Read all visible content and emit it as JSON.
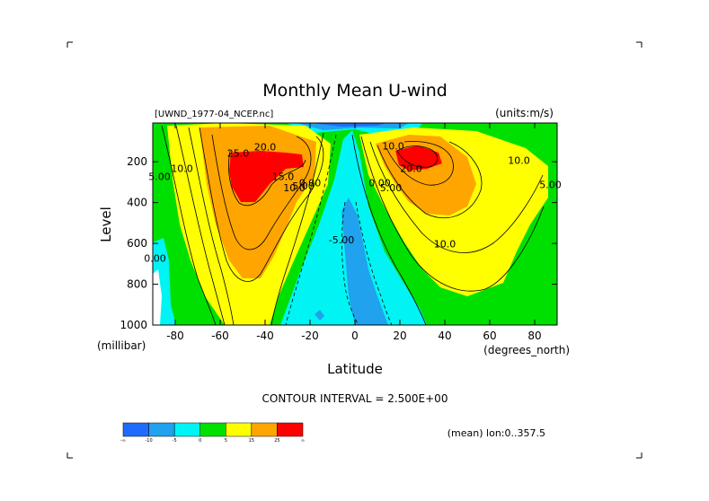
{
  "chart_data": {
    "type": "contour",
    "title": "Monthly Mean U-wind",
    "source_label": "[UWND_1977-04_NCEP.nc]",
    "units_label": "(units:m/s)",
    "xlabel": "Latitude",
    "x_unit_label": "(degrees_north)",
    "ylabel": "Level",
    "y_unit_label": "(millibar)",
    "x_ticks": [
      -80,
      -60,
      -40,
      -20,
      0,
      20,
      40,
      60,
      80
    ],
    "y_ticks": [
      200,
      400,
      600,
      800,
      1000
    ],
    "xlim": [
      -90,
      90
    ],
    "ylim": [
      1000,
      10
    ],
    "contour_interval_text": "CONTOUR INTERVAL = 2.500E+00",
    "mean_text": "(mean) lon:0..357.5",
    "contour_labels": [
      {
        "text": "25.0",
        "lat": -52,
        "lev": 175
      },
      {
        "text": "20.0",
        "lat": -40,
        "lev": 145
      },
      {
        "text": "15.0",
        "lat": -32,
        "lev": 290
      },
      {
        "text": "10.0",
        "lat": -27,
        "lev": 345
      },
      {
        "text": "5.00",
        "lat": -23,
        "lev": 335
      },
      {
        "text": "0.00",
        "lat": -20,
        "lev": 320
      },
      {
        "text": "10.0",
        "lat": -77,
        "lev": 250
      },
      {
        "text": "5.00",
        "lat": -87,
        "lev": 290
      },
      {
        "text": "0.00",
        "lat": -89,
        "lev": 690
      },
      {
        "text": "-5.00",
        "lat": -6,
        "lev": 600
      },
      {
        "text": "0.00",
        "lat": 11,
        "lev": 320
      },
      {
        "text": "5.00",
        "lat": 16,
        "lev": 345
      },
      {
        "text": "10.0",
        "lat": 17,
        "lev": 140
      },
      {
        "text": "20.0",
        "lat": 25,
        "lev": 250
      },
      {
        "text": "10.0",
        "lat": 40,
        "lev": 620
      },
      {
        "text": "10.0",
        "lat": 73,
        "lev": 210
      },
      {
        "text": "5.00",
        "lat": 87,
        "lev": 330
      }
    ],
    "colorbar": {
      "colors": [
        "#1e6cff",
        "#20a2ef",
        "#00f4f4",
        "#00e000",
        "#ffff00",
        "#ffa500",
        "#ff0000"
      ],
      "labels": [
        "-∞",
        "-10",
        "-5",
        "0",
        "5",
        "15",
        "25",
        "∞"
      ]
    },
    "fill_colors": {
      "lt_m10": "#1e6cff",
      "m10_m5": "#20a2ef",
      "m5_0": "#00f4f4",
      "0_5": "#00e000",
      "5_15": "#ffff00",
      "15_25": "#ffa500",
      "gt_25": "#ff0000"
    }
  }
}
